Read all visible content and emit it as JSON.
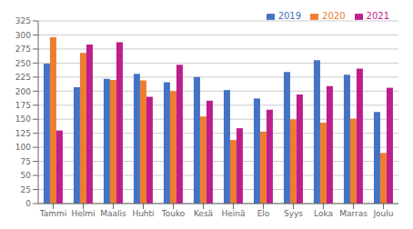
{
  "chart_data": {
    "type": "bar",
    "categories": [
      "Tammi",
      "Helmi",
      "Maalis",
      "Huhti",
      "Touko",
      "Kesä",
      "Heinä",
      "Elo",
      "Syys",
      "Loka",
      "Marras",
      "Joulu"
    ],
    "series": [
      {
        "name": "2019",
        "color": "#4472C4",
        "values": [
          249,
          207,
          222,
          231,
          216,
          225,
          202,
          187,
          234,
          255,
          229,
          163
        ]
      },
      {
        "name": "2020",
        "color": "#ED7D31",
        "values": [
          296,
          268,
          220,
          219,
          200,
          155,
          113,
          128,
          150,
          144,
          151,
          90
        ]
      },
      {
        "name": "2021",
        "color": "#BE1E8C",
        "values": [
          130,
          283,
          287,
          190,
          247,
          183,
          134,
          167,
          194,
          209,
          240,
          206
        ]
      }
    ],
    "ylim": [
      0,
      325
    ],
    "yticks": [
      0,
      25,
      50,
      75,
      100,
      125,
      150,
      175,
      200,
      225,
      250,
      275,
      300,
      325
    ],
    "grid": true,
    "legend": "upper right"
  }
}
